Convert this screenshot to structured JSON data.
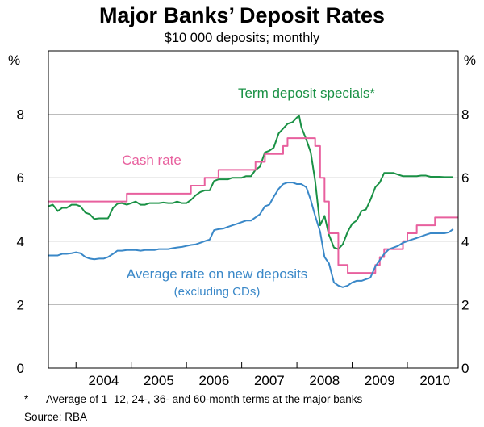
{
  "chart_data": {
    "type": "line",
    "title": "Major Banks’ Deposit Rates",
    "subtitle": "$10 000 deposits; monthly",
    "y_unit_left": "%",
    "y_unit_right": "%",
    "ylim": [
      0,
      10
    ],
    "y_ticks": [
      0,
      2,
      4,
      6,
      8
    ],
    "xlim": [
      2003.5,
      2010.92
    ],
    "x_ticks": [
      2004,
      2005,
      2006,
      2007,
      2008,
      2009,
      2010
    ],
    "x_tick_labels": [
      "2004",
      "2005",
      "2006",
      "2007",
      "2008",
      "2009",
      "2010"
    ],
    "grid": "horizontal",
    "colors": {
      "term": "#1a9145",
      "cash": "#e8609e",
      "avg": "#3a88c8",
      "grid": "#b3b3b3"
    },
    "series": [
      {
        "key": "term",
        "name": "Term deposit specials*",
        "step": false,
        "points": [
          [
            2003.5,
            5.1
          ],
          [
            2003.58,
            5.15
          ],
          [
            2003.67,
            4.95
          ],
          [
            2003.75,
            5.05
          ],
          [
            2003.83,
            5.05
          ],
          [
            2003.92,
            5.15
          ],
          [
            2004.0,
            5.15
          ],
          [
            2004.08,
            5.1
          ],
          [
            2004.17,
            4.9
          ],
          [
            2004.25,
            4.85
          ],
          [
            2004.33,
            4.7
          ],
          [
            2004.42,
            4.72
          ],
          [
            2004.5,
            4.72
          ],
          [
            2004.58,
            4.72
          ],
          [
            2004.67,
            5.05
          ],
          [
            2004.75,
            5.18
          ],
          [
            2004.83,
            5.2
          ],
          [
            2004.92,
            5.15
          ],
          [
            2005.0,
            5.2
          ],
          [
            2005.08,
            5.25
          ],
          [
            2005.17,
            5.15
          ],
          [
            2005.25,
            5.15
          ],
          [
            2005.33,
            5.2
          ],
          [
            2005.42,
            5.2
          ],
          [
            2005.5,
            5.2
          ],
          [
            2005.58,
            5.22
          ],
          [
            2005.67,
            5.2
          ],
          [
            2005.75,
            5.2
          ],
          [
            2005.83,
            5.25
          ],
          [
            2005.92,
            5.2
          ],
          [
            2006.0,
            5.2
          ],
          [
            2006.08,
            5.3
          ],
          [
            2006.17,
            5.45
          ],
          [
            2006.25,
            5.55
          ],
          [
            2006.33,
            5.6
          ],
          [
            2006.42,
            5.6
          ],
          [
            2006.5,
            5.9
          ],
          [
            2006.58,
            5.95
          ],
          [
            2006.67,
            5.95
          ],
          [
            2006.75,
            5.95
          ],
          [
            2006.83,
            6.0
          ],
          [
            2006.92,
            6.0
          ],
          [
            2007.0,
            6.0
          ],
          [
            2007.08,
            6.05
          ],
          [
            2007.17,
            6.05
          ],
          [
            2007.25,
            6.25
          ],
          [
            2007.33,
            6.35
          ],
          [
            2007.42,
            6.8
          ],
          [
            2007.5,
            6.85
          ],
          [
            2007.58,
            6.95
          ],
          [
            2007.67,
            7.4
          ],
          [
            2007.75,
            7.55
          ],
          [
            2007.83,
            7.7
          ],
          [
            2007.92,
            7.75
          ],
          [
            2008.0,
            7.9
          ],
          [
            2008.04,
            7.95
          ],
          [
            2008.08,
            7.6
          ],
          [
            2008.17,
            7.2
          ],
          [
            2008.25,
            6.8
          ],
          [
            2008.33,
            5.9
          ],
          [
            2008.42,
            4.5
          ],
          [
            2008.5,
            4.8
          ],
          [
            2008.58,
            4.2
          ],
          [
            2008.67,
            3.8
          ],
          [
            2008.75,
            3.75
          ],
          [
            2008.83,
            3.9
          ],
          [
            2008.92,
            4.3
          ],
          [
            2009.0,
            4.55
          ],
          [
            2009.08,
            4.65
          ],
          [
            2009.17,
            4.95
          ],
          [
            2009.25,
            5.0
          ],
          [
            2009.33,
            5.3
          ],
          [
            2009.42,
            5.7
          ],
          [
            2009.5,
            5.85
          ],
          [
            2009.58,
            6.15
          ],
          [
            2009.67,
            6.15
          ],
          [
            2009.75,
            6.15
          ],
          [
            2009.83,
            6.1
          ],
          [
            2009.92,
            6.05
          ],
          [
            2010.0,
            6.05
          ],
          [
            2010.08,
            6.05
          ],
          [
            2010.17,
            6.05
          ],
          [
            2010.25,
            6.07
          ],
          [
            2010.33,
            6.07
          ],
          [
            2010.42,
            6.03
          ],
          [
            2010.5,
            6.03
          ],
          [
            2010.58,
            6.03
          ],
          [
            2010.67,
            6.02
          ],
          [
            2010.75,
            6.02
          ],
          [
            2010.83,
            6.02
          ]
        ]
      },
      {
        "key": "cash",
        "name": "Cash rate",
        "step": true,
        "points": [
          [
            2003.5,
            5.25
          ],
          [
            2004.92,
            5.5
          ],
          [
            2006.08,
            5.75
          ],
          [
            2006.33,
            6.0
          ],
          [
            2006.58,
            6.25
          ],
          [
            2007.25,
            6.5
          ],
          [
            2007.42,
            6.75
          ],
          [
            2007.75,
            7.0
          ],
          [
            2007.83,
            7.25
          ],
          [
            2008.33,
            7.0
          ],
          [
            2008.42,
            6.0
          ],
          [
            2008.5,
            5.25
          ],
          [
            2008.58,
            4.25
          ],
          [
            2008.75,
            3.25
          ],
          [
            2008.92,
            3.0
          ],
          [
            2009.42,
            3.25
          ],
          [
            2009.5,
            3.5
          ],
          [
            2009.58,
            3.75
          ],
          [
            2009.92,
            4.0
          ],
          [
            2010.0,
            4.25
          ],
          [
            2010.17,
            4.5
          ],
          [
            2010.5,
            4.75
          ],
          [
            2010.92,
            4.75
          ]
        ]
      },
      {
        "key": "avg",
        "name": "Average rate on new deposits",
        "step": false,
        "points": [
          [
            2003.5,
            3.55
          ],
          [
            2003.58,
            3.55
          ],
          [
            2003.67,
            3.55
          ],
          [
            2003.75,
            3.6
          ],
          [
            2003.83,
            3.6
          ],
          [
            2003.92,
            3.62
          ],
          [
            2004.0,
            3.65
          ],
          [
            2004.08,
            3.62
          ],
          [
            2004.17,
            3.5
          ],
          [
            2004.25,
            3.45
          ],
          [
            2004.33,
            3.43
          ],
          [
            2004.42,
            3.45
          ],
          [
            2004.5,
            3.45
          ],
          [
            2004.58,
            3.5
          ],
          [
            2004.67,
            3.6
          ],
          [
            2004.75,
            3.7
          ],
          [
            2004.83,
            3.7
          ],
          [
            2004.92,
            3.72
          ],
          [
            2005.0,
            3.72
          ],
          [
            2005.08,
            3.72
          ],
          [
            2005.17,
            3.7
          ],
          [
            2005.25,
            3.72
          ],
          [
            2005.33,
            3.72
          ],
          [
            2005.42,
            3.72
          ],
          [
            2005.5,
            3.75
          ],
          [
            2005.58,
            3.75
          ],
          [
            2005.67,
            3.75
          ],
          [
            2005.75,
            3.78
          ],
          [
            2005.83,
            3.8
          ],
          [
            2005.92,
            3.82
          ],
          [
            2006.0,
            3.85
          ],
          [
            2006.08,
            3.88
          ],
          [
            2006.17,
            3.9
          ],
          [
            2006.25,
            3.95
          ],
          [
            2006.33,
            4.0
          ],
          [
            2006.42,
            4.05
          ],
          [
            2006.5,
            4.35
          ],
          [
            2006.58,
            4.38
          ],
          [
            2006.67,
            4.4
          ],
          [
            2006.75,
            4.45
          ],
          [
            2006.83,
            4.5
          ],
          [
            2006.92,
            4.55
          ],
          [
            2007.0,
            4.6
          ],
          [
            2007.08,
            4.65
          ],
          [
            2007.17,
            4.65
          ],
          [
            2007.25,
            4.75
          ],
          [
            2007.33,
            4.85
          ],
          [
            2007.42,
            5.1
          ],
          [
            2007.5,
            5.15
          ],
          [
            2007.58,
            5.4
          ],
          [
            2007.67,
            5.65
          ],
          [
            2007.75,
            5.8
          ],
          [
            2007.83,
            5.85
          ],
          [
            2007.92,
            5.85
          ],
          [
            2008.0,
            5.8
          ],
          [
            2008.08,
            5.8
          ],
          [
            2008.17,
            5.7
          ],
          [
            2008.25,
            5.3
          ],
          [
            2008.33,
            4.8
          ],
          [
            2008.42,
            4.3
          ],
          [
            2008.5,
            3.5
          ],
          [
            2008.58,
            3.3
          ],
          [
            2008.67,
            2.7
          ],
          [
            2008.75,
            2.6
          ],
          [
            2008.83,
            2.55
          ],
          [
            2008.92,
            2.6
          ],
          [
            2009.0,
            2.7
          ],
          [
            2009.08,
            2.75
          ],
          [
            2009.17,
            2.75
          ],
          [
            2009.25,
            2.8
          ],
          [
            2009.33,
            2.85
          ],
          [
            2009.42,
            3.2
          ],
          [
            2009.5,
            3.4
          ],
          [
            2009.58,
            3.6
          ],
          [
            2009.67,
            3.75
          ],
          [
            2009.75,
            3.8
          ],
          [
            2009.83,
            3.85
          ],
          [
            2009.92,
            3.95
          ],
          [
            2010.0,
            4.0
          ],
          [
            2010.08,
            4.05
          ],
          [
            2010.17,
            4.1
          ],
          [
            2010.25,
            4.15
          ],
          [
            2010.33,
            4.2
          ],
          [
            2010.42,
            4.25
          ],
          [
            2010.5,
            4.25
          ],
          [
            2010.58,
            4.25
          ],
          [
            2010.67,
            4.25
          ],
          [
            2010.75,
            4.28
          ],
          [
            2010.83,
            4.38
          ]
        ]
      }
    ],
    "annotations": {
      "term_label": "Term deposit specials*",
      "cash_label": "Cash rate",
      "avg_label": "Average rate on new deposits",
      "avg_sublabel": "(excluding CDs)"
    },
    "footnote": "*      Average of 1–12, 24-, 36- and 60-month terms at the major banks",
    "source": "Source: RBA"
  }
}
